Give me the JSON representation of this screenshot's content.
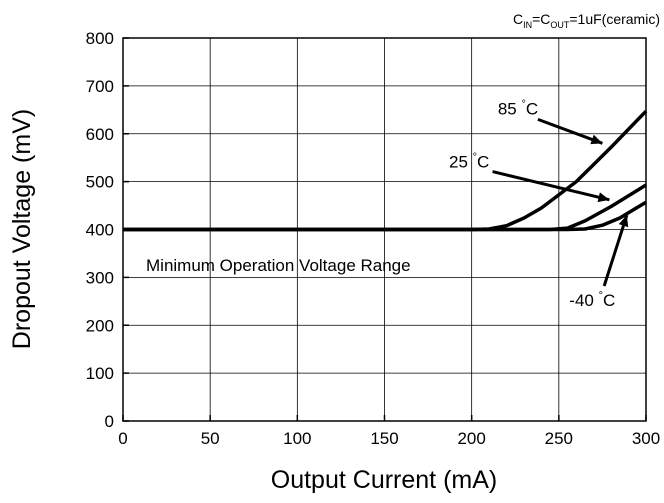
{
  "chart_data": {
    "type": "line",
    "condition": {
      "c": "C",
      "in": "IN",
      "eq": "=C",
      "out": "OUT",
      "rest": "=1uF(ceramic)"
    },
    "xlabel": "Output Current (mA)",
    "ylabel": "Dropout Voltage (mV)",
    "xlim": [
      0,
      300
    ],
    "ylim": [
      0,
      800
    ],
    "xticks": [
      0,
      50,
      100,
      150,
      200,
      250,
      300
    ],
    "yticks": [
      0,
      100,
      200,
      300,
      400,
      500,
      600,
      700,
      800
    ],
    "grid": true,
    "region_label": "Minimum Operation Voltage Range",
    "series": [
      {
        "name": "85",
        "unit": "C",
        "degree": "°",
        "points": [
          [
            0,
            400
          ],
          [
            200,
            400
          ],
          [
            210,
            401
          ],
          [
            220,
            408
          ],
          [
            230,
            424
          ],
          [
            240,
            445
          ],
          [
            260,
            500
          ],
          [
            280,
            572
          ],
          [
            300,
            647
          ]
        ]
      },
      {
        "name": "25",
        "unit": "C",
        "degree": "°",
        "points": [
          [
            0,
            400
          ],
          [
            245,
            400
          ],
          [
            255,
            403
          ],
          [
            265,
            418
          ],
          [
            280,
            448
          ],
          [
            300,
            493
          ]
        ]
      },
      {
        "name": "-40",
        "unit": "C",
        "degree": "°",
        "points": [
          [
            0,
            400
          ],
          [
            255,
            400
          ],
          [
            265,
            401
          ],
          [
            275,
            409
          ],
          [
            285,
            424
          ],
          [
            300,
            457
          ]
        ]
      }
    ],
    "annotations": [
      {
        "series": "85",
        "text_at": [
          215,
          640
        ],
        "arrow_from": [
          238,
          630
        ],
        "arrow_to": [
          275,
          580
        ]
      },
      {
        "series": "25",
        "text_at": [
          187,
          530
        ],
        "arrow_from": [
          212,
          521
        ],
        "arrow_to": [
          279,
          462
        ]
      },
      {
        "series": "-40",
        "text_at": [
          256,
          240
        ],
        "arrow_from": [
          276,
          282
        ],
        "arrow_to": [
          289,
          430
        ]
      }
    ]
  }
}
